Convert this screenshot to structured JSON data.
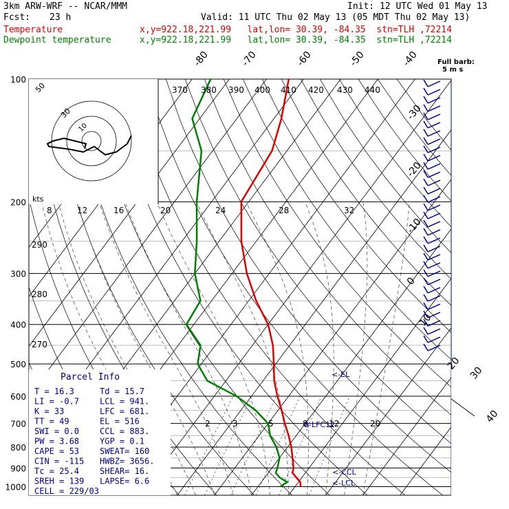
{
  "header": {
    "model": "3km ARW-WRF -- NCAR/MMM",
    "init": "Init: 12 UTC Wed 01 May 13",
    "fcst_label": "Fcst:",
    "fcst_value": "23 h",
    "valid": "Valid: 11 UTC Thu 02 May 13 (05 MDT Thu 02 May 13)",
    "temp_label": "Temperature",
    "temp_loc": "x,y=922.18,221.99   lat,lon= 30.39, -84.35  stn=TLH ,72214",
    "dew_label": "Dewpoint temperature",
    "dew_loc": "x,y=922.18,221.99   lat,lon= 30.39, -84.35  stn=TLH ,72214"
  },
  "colors": {
    "temperature": "#e00000",
    "dewpoint": "#008000",
    "barbs": "#00008b",
    "parcel_text": "#00008b"
  },
  "chart_data": {
    "type": "line",
    "subtype": "skew-T log-P diagram",
    "y_axis": "pressure (hPa)",
    "pressure_ticks": [
      "100",
      "200",
      "300",
      "400",
      "500",
      "600",
      "700",
      "800",
      "900",
      "1000"
    ],
    "isotherm_labels": [
      "-80",
      "-70",
      "-60",
      "-50",
      "-40",
      "-30",
      "-20",
      "-10",
      "0",
      "10",
      "20",
      "30",
      "40"
    ],
    "theta_labels": [
      "370",
      "380",
      "390",
      "400",
      "410",
      "420",
      "430",
      "440"
    ],
    "dry_adiabat_labels": [
      "290",
      "280",
      "270"
    ],
    "mixing_ratio_labels": [
      "2",
      "3",
      "5",
      "8",
      "12",
      "20"
    ],
    "hodo_speed_labels": [
      "8",
      "12",
      "16",
      "20",
      "24",
      "28",
      "32"
    ],
    "hodo_ring_labels": [
      "50",
      "30",
      "10"
    ],
    "hodo_units": "kts",
    "barb_key": "Full barb:",
    "barb_key_value": "5 m s",
    "series": [
      {
        "name": "Temperature",
        "points": [
          [
            1000,
            21.5
          ],
          [
            975,
            20.5
          ],
          [
            950,
            18.5
          ],
          [
            925,
            16.5
          ],
          [
            900,
            15.8
          ],
          [
            850,
            13.5
          ],
          [
            800,
            11
          ],
          [
            750,
            8
          ],
          [
            700,
            4.5
          ],
          [
            650,
            1
          ],
          [
            600,
            -3
          ],
          [
            550,
            -7
          ],
          [
            500,
            -10.5
          ],
          [
            450,
            -14.5
          ],
          [
            400,
            -20
          ],
          [
            350,
            -28
          ],
          [
            300,
            -36
          ],
          [
            250,
            -44
          ],
          [
            200,
            -52
          ],
          [
            150,
            -54
          ],
          [
            125,
            -58
          ],
          [
            100,
            -64
          ]
        ]
      },
      {
        "name": "Dewpoint temperature",
        "points": [
          [
            1000,
            16
          ],
          [
            975,
            17
          ],
          [
            950,
            14
          ],
          [
            925,
            12
          ],
          [
            900,
            11.5
          ],
          [
            850,
            10
          ],
          [
            800,
            7
          ],
          [
            750,
            3
          ],
          [
            700,
            0
          ],
          [
            650,
            -6
          ],
          [
            600,
            -14
          ],
          [
            550,
            -25
          ],
          [
            500,
            -31
          ],
          [
            450,
            -34
          ],
          [
            400,
            -42
          ],
          [
            350,
            -43
          ],
          [
            300,
            -50
          ],
          [
            250,
            -56
          ],
          [
            200,
            -64
          ],
          [
            150,
            -73
          ],
          [
            125,
            -82
          ],
          [
            100,
            -85
          ]
        ]
      }
    ],
    "annotations": [
      "<-EL",
      "8-LFC12",
      "<-CCL",
      "<-LCL"
    ],
    "hodograph_points": [
      [
        -2.5,
        -2.7
      ],
      [
        -2,
        -1
      ],
      [
        -6,
        0
      ],
      [
        -10,
        1
      ],
      [
        -14,
        0
      ],
      [
        -16,
        -1
      ],
      [
        -15.5,
        -2
      ],
      [
        -8,
        -3
      ],
      [
        -3,
        -4
      ],
      [
        -1,
        -3
      ],
      [
        1,
        -2
      ],
      [
        5,
        -5
      ],
      [
        9,
        -4
      ],
      [
        13,
        -1
      ],
      [
        14.5,
        2
      ]
    ]
  },
  "parcel_info": {
    "title": "Parcel Info",
    "rows": [
      [
        "T   =    16.3",
        "Td  =   15.7"
      ],
      [
        "LI  =    -0.7",
        "LCL =   941."
      ],
      [
        "K   =      33",
        "LFC =   681."
      ],
      [
        "TT  =      49",
        "EL  =    516"
      ],
      [
        "SWI =     0.0",
        "CCL =   883."
      ],
      [
        "PW  =    3.68",
        "YGP =    0.1"
      ],
      [
        "CAPE =     53",
        "SWEAT=    160"
      ],
      [
        "CIN  =   -115",
        "HWBZ=  3656."
      ],
      [
        "Tc  =    25.4",
        "SHEAR=   16."
      ],
      [
        "SREH =    139",
        "LAPSE=    6.6"
      ],
      [
        "CELL = 229/03",
        ""
      ]
    ]
  }
}
